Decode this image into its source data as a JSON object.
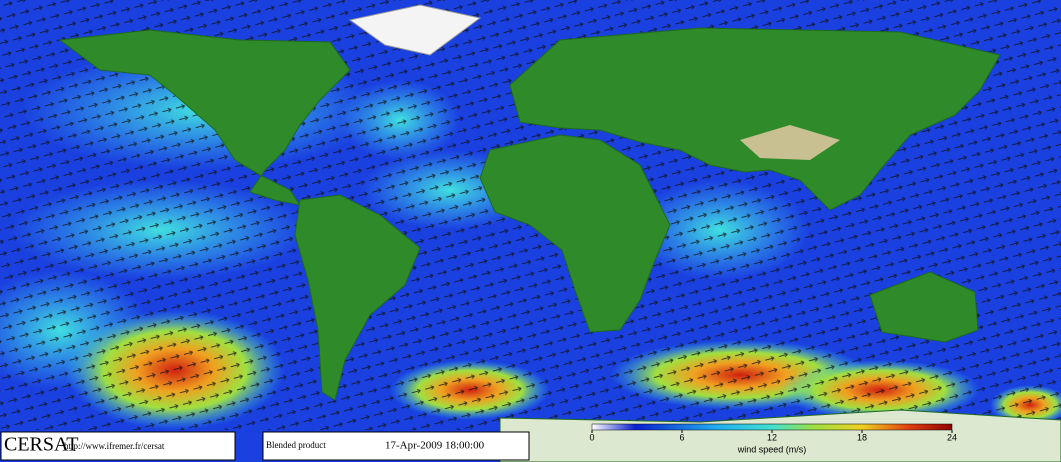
{
  "logo": "CERSAT",
  "url": "http://www.ifremer.fr/cersat",
  "product": "Blended product",
  "timestamp": "17-Apr-2009 18:00:00",
  "colorbar": {
    "label": "wind speed (m/s)",
    "lim": [
      0,
      24
    ],
    "ticks": [
      0,
      6,
      12,
      18,
      24
    ]
  }
}
